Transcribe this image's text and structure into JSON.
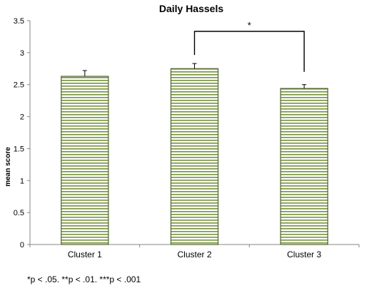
{
  "chart_data": {
    "type": "bar",
    "title": "Daily Hassels",
    "xlabel": "",
    "ylabel": "mean score",
    "categories": [
      "Cluster 1",
      "Cluster 2",
      "Cluster 3"
    ],
    "values": [
      2.63,
      2.75,
      2.44
    ],
    "error": [
      0.09,
      0.08,
      0.06
    ],
    "ylim": [
      0,
      3.5
    ],
    "yticks": [
      "0",
      "0.5",
      "1",
      "1.5",
      "2",
      "2.5",
      "3",
      "3.5"
    ],
    "significance": {
      "from": "Cluster 2",
      "to": "Cluster 3",
      "label": "*"
    },
    "grid": false,
    "legend": "none",
    "bar_fill": "#ffffff",
    "bar_stripe": "#76923c",
    "bar_border": "#4f6228",
    "footnote": "*p < .05.  **p < .01.  ***p < .001"
  }
}
